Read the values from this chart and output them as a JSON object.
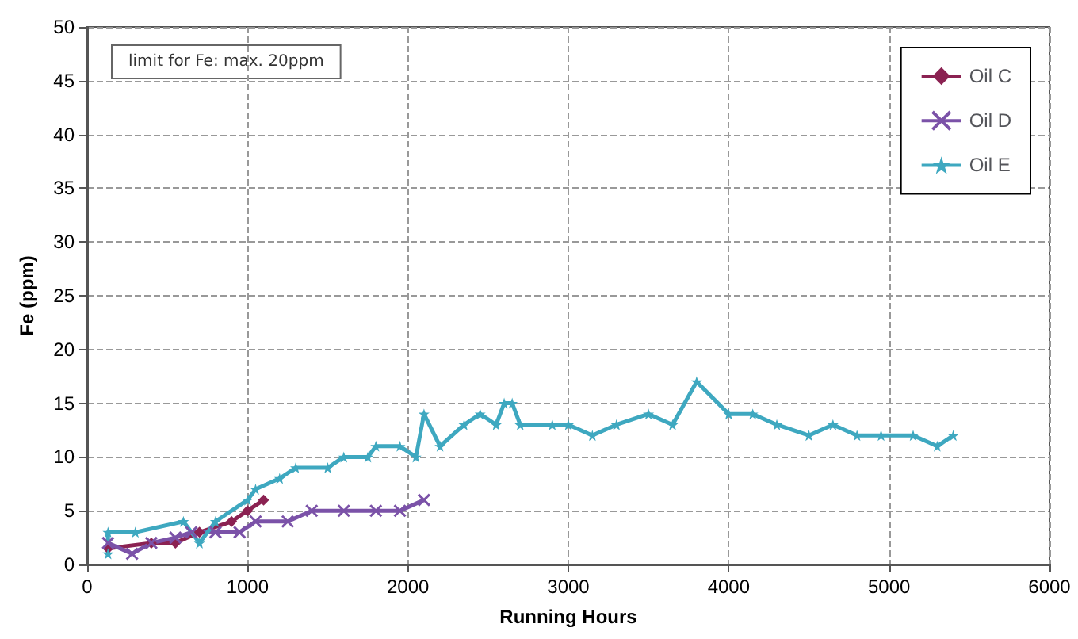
{
  "chart_data": {
    "type": "line",
    "xlabel": "Running Hours",
    "ylabel": "Fe (ppm)",
    "xlim": [
      0,
      6000
    ],
    "xticks": [
      0,
      1000,
      2000,
      3000,
      4000,
      5000,
      6000
    ],
    "ylim": [
      0,
      50
    ],
    "yticks": [
      0,
      5,
      10,
      15,
      20,
      25,
      30,
      35,
      40,
      45,
      50
    ],
    "grid": true,
    "legend": "top right",
    "annotations": [
      "limit for Fe: max. 20ppm"
    ],
    "series": [
      {
        "name": "Oil C",
        "color": "#8b2252",
        "marker": "diamond",
        "x": [
          130,
          400,
          550,
          700,
          900,
          1000,
          1100
        ],
        "values": [
          1.5,
          2,
          2,
          3,
          4,
          5,
          6
        ]
      },
      {
        "name": "Oil D",
        "color": "#7b52a8",
        "marker": "cross",
        "x": [
          130,
          280,
          400,
          550,
          650,
          800,
          950,
          1050,
          1250,
          1400,
          1600,
          1800,
          1950,
          2100
        ],
        "values": [
          2,
          1,
          2,
          2.5,
          3,
          3,
          3,
          4,
          4,
          5,
          5,
          5,
          5,
          6
        ]
      },
      {
        "name": "Oil E",
        "color": "#3ea8c0",
        "marker": "star",
        "x": [
          130,
          130,
          300,
          600,
          700,
          800,
          1000,
          1050,
          1200,
          1300,
          1500,
          1600,
          1750,
          1800,
          1950,
          2050,
          2100,
          2200,
          2350,
          2450,
          2550,
          2600,
          2650,
          2700,
          2900,
          3000,
          3150,
          3300,
          3500,
          3650,
          3800,
          4000,
          4150,
          4300,
          4500,
          4650,
          4800,
          4950,
          5150,
          5300,
          5400
        ],
        "values": [
          1,
          3,
          3,
          4,
          2,
          4,
          6,
          7,
          8,
          9,
          9,
          10,
          10,
          11,
          11,
          10,
          14,
          11,
          13,
          14,
          13,
          15,
          15,
          13,
          13,
          13,
          12,
          13,
          14,
          13,
          17,
          14,
          14,
          13,
          12,
          13,
          12,
          12,
          12,
          11,
          12
        ]
      }
    ]
  }
}
